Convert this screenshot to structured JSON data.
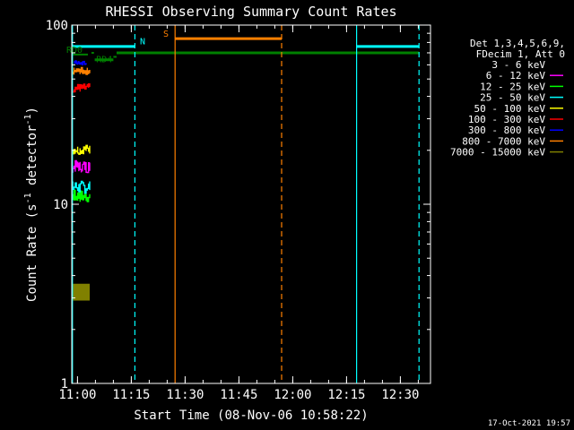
{
  "chart_data": {
    "type": "line",
    "title": "RHESSI Observing Summary Count Rates",
    "xlabel": "Start Time (08-Nov-06 10:58:22)",
    "ylabel_main": "Count Rate (s",
    "ylabel_sup1": "-1",
    "ylabel_mid": " detector",
    "ylabel_sup2": "-1",
    "ylabel_end": ")",
    "ylog": true,
    "ylim": [
      1,
      100
    ],
    "xlim_min": [
      0,
      100
    ],
    "x_ticks": [
      {
        "label": "11:00",
        "min": 1.6
      },
      {
        "label": "11:15",
        "min": 16.6
      },
      {
        "label": "11:30",
        "min": 31.6
      },
      {
        "label": "11:45",
        "min": 46.6
      },
      {
        "label": "12:00",
        "min": 61.6
      },
      {
        "label": "12:15",
        "min": 76.6
      },
      {
        "label": "12:30",
        "min": 91.6
      }
    ],
    "y_ticks": [
      {
        "label": "1",
        "value": 1
      },
      {
        "label": "10",
        "value": 10
      },
      {
        "label": "100",
        "value": 100
      }
    ],
    "legend_header": [
      "Det 1,3,4,5,6,9,",
      "FDecim 1, Att 0"
    ],
    "legend": [
      {
        "label": "3 - 6 keV",
        "color": "#000000"
      },
      {
        "label": "6 - 12 keV",
        "color": "#ff00ff"
      },
      {
        "label": "12 - 25 keV",
        "color": "#00ff00"
      },
      {
        "label": "25 - 50 keV",
        "color": "#00ffff"
      },
      {
        "label": "50 - 100 keV",
        "color": "#ffff00"
      },
      {
        "label": "100 - 300 keV",
        "color": "#ff0000"
      },
      {
        "label": "300 - 800 keV",
        "color": "#0000ff"
      },
      {
        "label": "800 - 7000 keV",
        "color": "#ff8000"
      },
      {
        "label": "7000 - 15000 keV",
        "color": "#808000"
      }
    ],
    "series": [
      {
        "color": "#808000",
        "x_start": 0.3,
        "x_end": 5.0,
        "level_lo": 2.9,
        "level_hi": 3.6,
        "solid": true
      },
      {
        "color": "#000000",
        "x_start": 0.3,
        "x_end": 5.0,
        "level_lo": 6.3,
        "level_hi": 8.0
      },
      {
        "color": "#00ff00",
        "x_start": 0.3,
        "x_end": 5.0,
        "level_lo": 10.2,
        "level_hi": 12.0
      },
      {
        "color": "#00ffff",
        "x_start": 0.3,
        "x_end": 5.0,
        "level_lo": 11.5,
        "level_hi": 13.5
      },
      {
        "color": "#ff00ff",
        "x_start": 0.3,
        "x_end": 5.0,
        "level_lo": 15.0,
        "level_hi": 17.5
      },
      {
        "color": "#ffff00",
        "x_start": 0.3,
        "x_end": 5.0,
        "level_lo": 19.0,
        "level_hi": 21.5
      },
      {
        "color": "#ff0000",
        "x_start": 0.3,
        "x_end": 5.0,
        "level_lo": 42.0,
        "level_hi": 47.0
      },
      {
        "color": "#ff8000",
        "x_start": 0.3,
        "x_end": 5.0,
        "level_lo": 53.0,
        "level_hi": 58.0
      },
      {
        "color": "#0000ff",
        "x_start": 0.8,
        "x_end": 4.0,
        "level_lo": 60.0,
        "level_hi": 63.5
      }
    ],
    "orbit_bars": [
      {
        "color": "#00ffff",
        "x_start": 0.0,
        "x_end": 17.5,
        "y": 76,
        "width": 3
      },
      {
        "color": "#00ffff",
        "x_start": 79.4,
        "x_end": 96.8,
        "y": 76,
        "width": 3
      },
      {
        "color": "#ff8000",
        "x_start": 28.8,
        "x_end": 58.5,
        "y": 84,
        "width": 3
      },
      {
        "color": "#008000",
        "x_start": 12.5,
        "x_end": 96.8,
        "y": 70,
        "width": 3
      },
      {
        "color": "#008000",
        "x_start": 0.0,
        "x_end": 4.5,
        "y": 68.5,
        "width": 2
      },
      {
        "color": "#008000",
        "x_start": 6.4,
        "x_end": 11.6,
        "y": 64,
        "width": 3
      },
      {
        "color": "#008000",
        "x_start": 11.6,
        "x_end": 12.5,
        "y": 66.5,
        "width": 2
      },
      {
        "color": "#008000",
        "x_start": 5.5,
        "x_end": 6.2,
        "y": 70,
        "width": 2
      }
    ],
    "vlines": [
      {
        "color": "#00ffff",
        "x": 0.2,
        "dashed": false
      },
      {
        "color": "#00ffff",
        "x": 17.6,
        "dashed": true
      },
      {
        "color": "#ff8000",
        "x": 28.8,
        "dashed": false
      },
      {
        "color": "#ff8000",
        "x": 58.5,
        "dashed": true
      },
      {
        "color": "#00ffff",
        "x": 79.4,
        "dashed": false
      },
      {
        "color": "#00ffff",
        "x": 96.8,
        "dashed": true
      }
    ],
    "annotations": [
      {
        "text": "N",
        "color": "#00ffff",
        "x": 19.0,
        "y": 78
      },
      {
        "text": "S",
        "color": "#ff8000",
        "x": 25.5,
        "y": 86
      },
      {
        "text": "RD0",
        "color": "#008000",
        "x": -1.5,
        "y": 70
      },
      {
        "text": "RD4",
        "color": "#008000",
        "x": 6.8,
        "y": 62
      }
    ],
    "timestamp": "17-Oct-2021 19:57"
  }
}
